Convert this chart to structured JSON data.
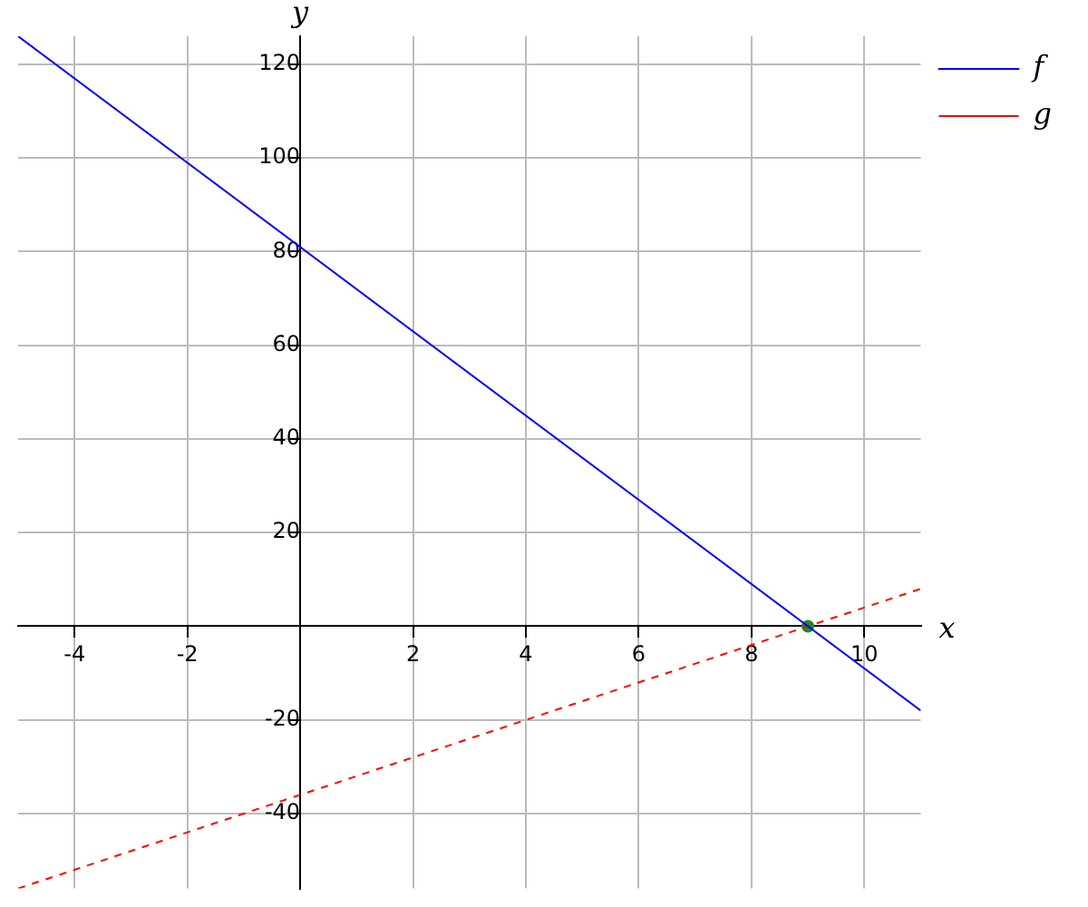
{
  "chart_data": {
    "type": "line",
    "xlabel": "x",
    "ylabel": "y",
    "xlim": [
      -5,
      11
    ],
    "ylim": [
      -56,
      126
    ],
    "xticks": [
      -4,
      -2,
      2,
      4,
      6,
      8,
      10
    ],
    "yticks": [
      -40,
      -20,
      20,
      40,
      60,
      80,
      100,
      120
    ],
    "grid": true,
    "legend": "top right",
    "marker": "none",
    "series": [
      {
        "name": "f",
        "color": "#0000ff",
        "x": [
          -5,
          11
        ],
        "values": [
          126,
          -18
        ],
        "line_style": "solid"
      },
      {
        "name": "g",
        "color": "#ff0000",
        "x": [
          -5,
          11
        ],
        "values": [
          -56,
          8
        ],
        "line_style": "dashed"
      },
      {
        "type": "scatter",
        "color": "#228b22",
        "x": [
          9
        ],
        "values": [
          0
        ],
        "marker": "circle"
      }
    ]
  }
}
